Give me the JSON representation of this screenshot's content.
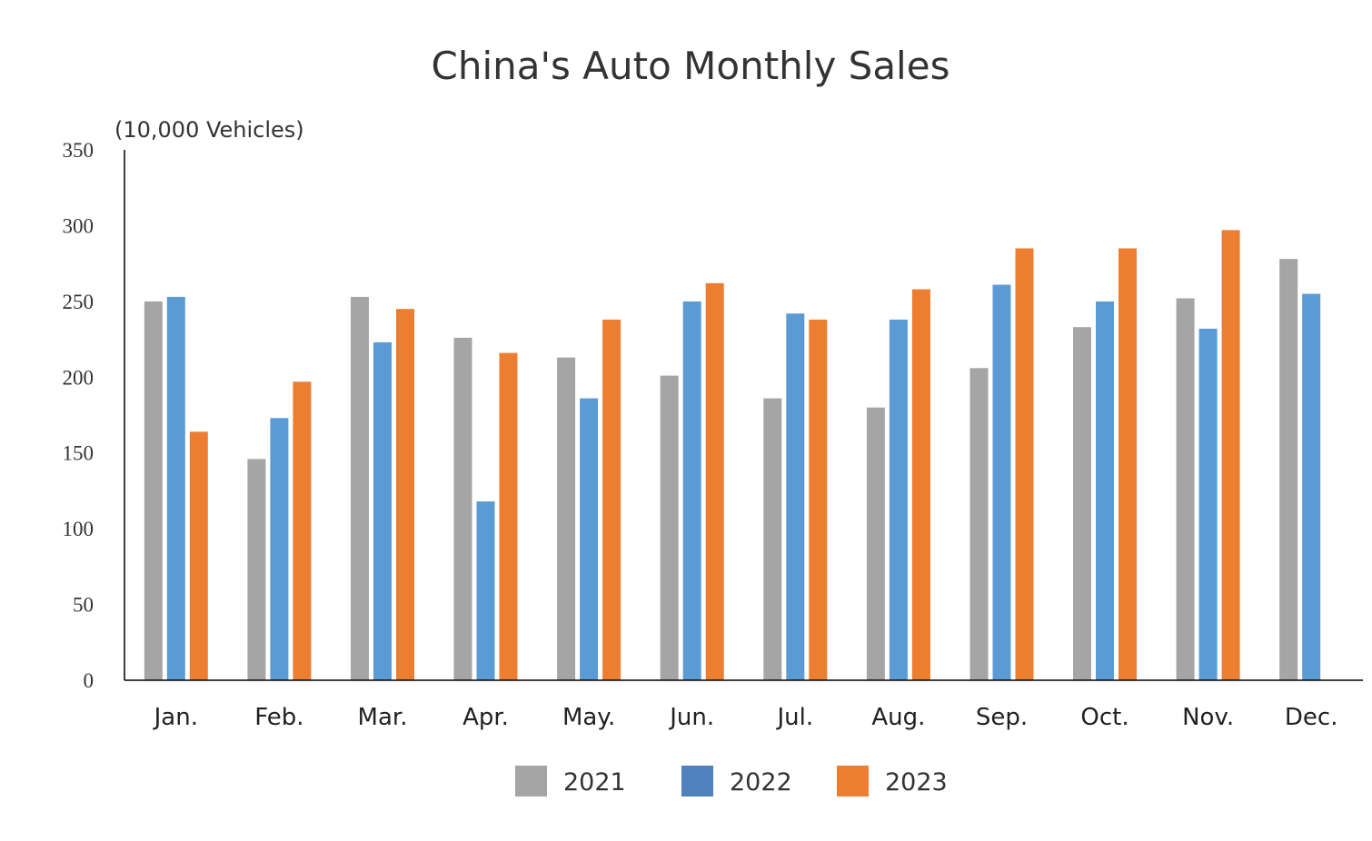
{
  "chart_data": {
    "type": "bar",
    "title": "China's Auto Monthly Sales",
    "ylabel": "(10,000 Vehicles)",
    "xlabel": "",
    "ylim": [
      0,
      350
    ],
    "yticks": [
      0,
      50,
      100,
      150,
      200,
      250,
      300,
      350
    ],
    "grid": false,
    "legend_position": "bottom",
    "categories": [
      "Jan.",
      "Feb.",
      "Mar.",
      "Apr.",
      "May.",
      "Jun.",
      "Jul.",
      "Aug.",
      "Sep.",
      "Oct.",
      "Nov.",
      "Dec."
    ],
    "series": [
      {
        "name": "2021",
        "color": "#a5a5a5",
        "values": [
          250,
          146,
          253,
          226,
          213,
          201,
          186,
          180,
          206,
          233,
          252,
          278
        ]
      },
      {
        "name": "2022",
        "color": "#5b9bd5",
        "values": [
          253,
          173,
          223,
          118,
          186,
          250,
          242,
          238,
          261,
          250,
          232,
          255
        ]
      },
      {
        "name": "2023",
        "color": "#ed7d31",
        "values": [
          164,
          197,
          245,
          216,
          238,
          262,
          238,
          258,
          285,
          285,
          297,
          null
        ]
      }
    ],
    "legend_swatch_colors": [
      "#a5a5a5",
      "#4f81bd",
      "#ed7d31"
    ]
  }
}
